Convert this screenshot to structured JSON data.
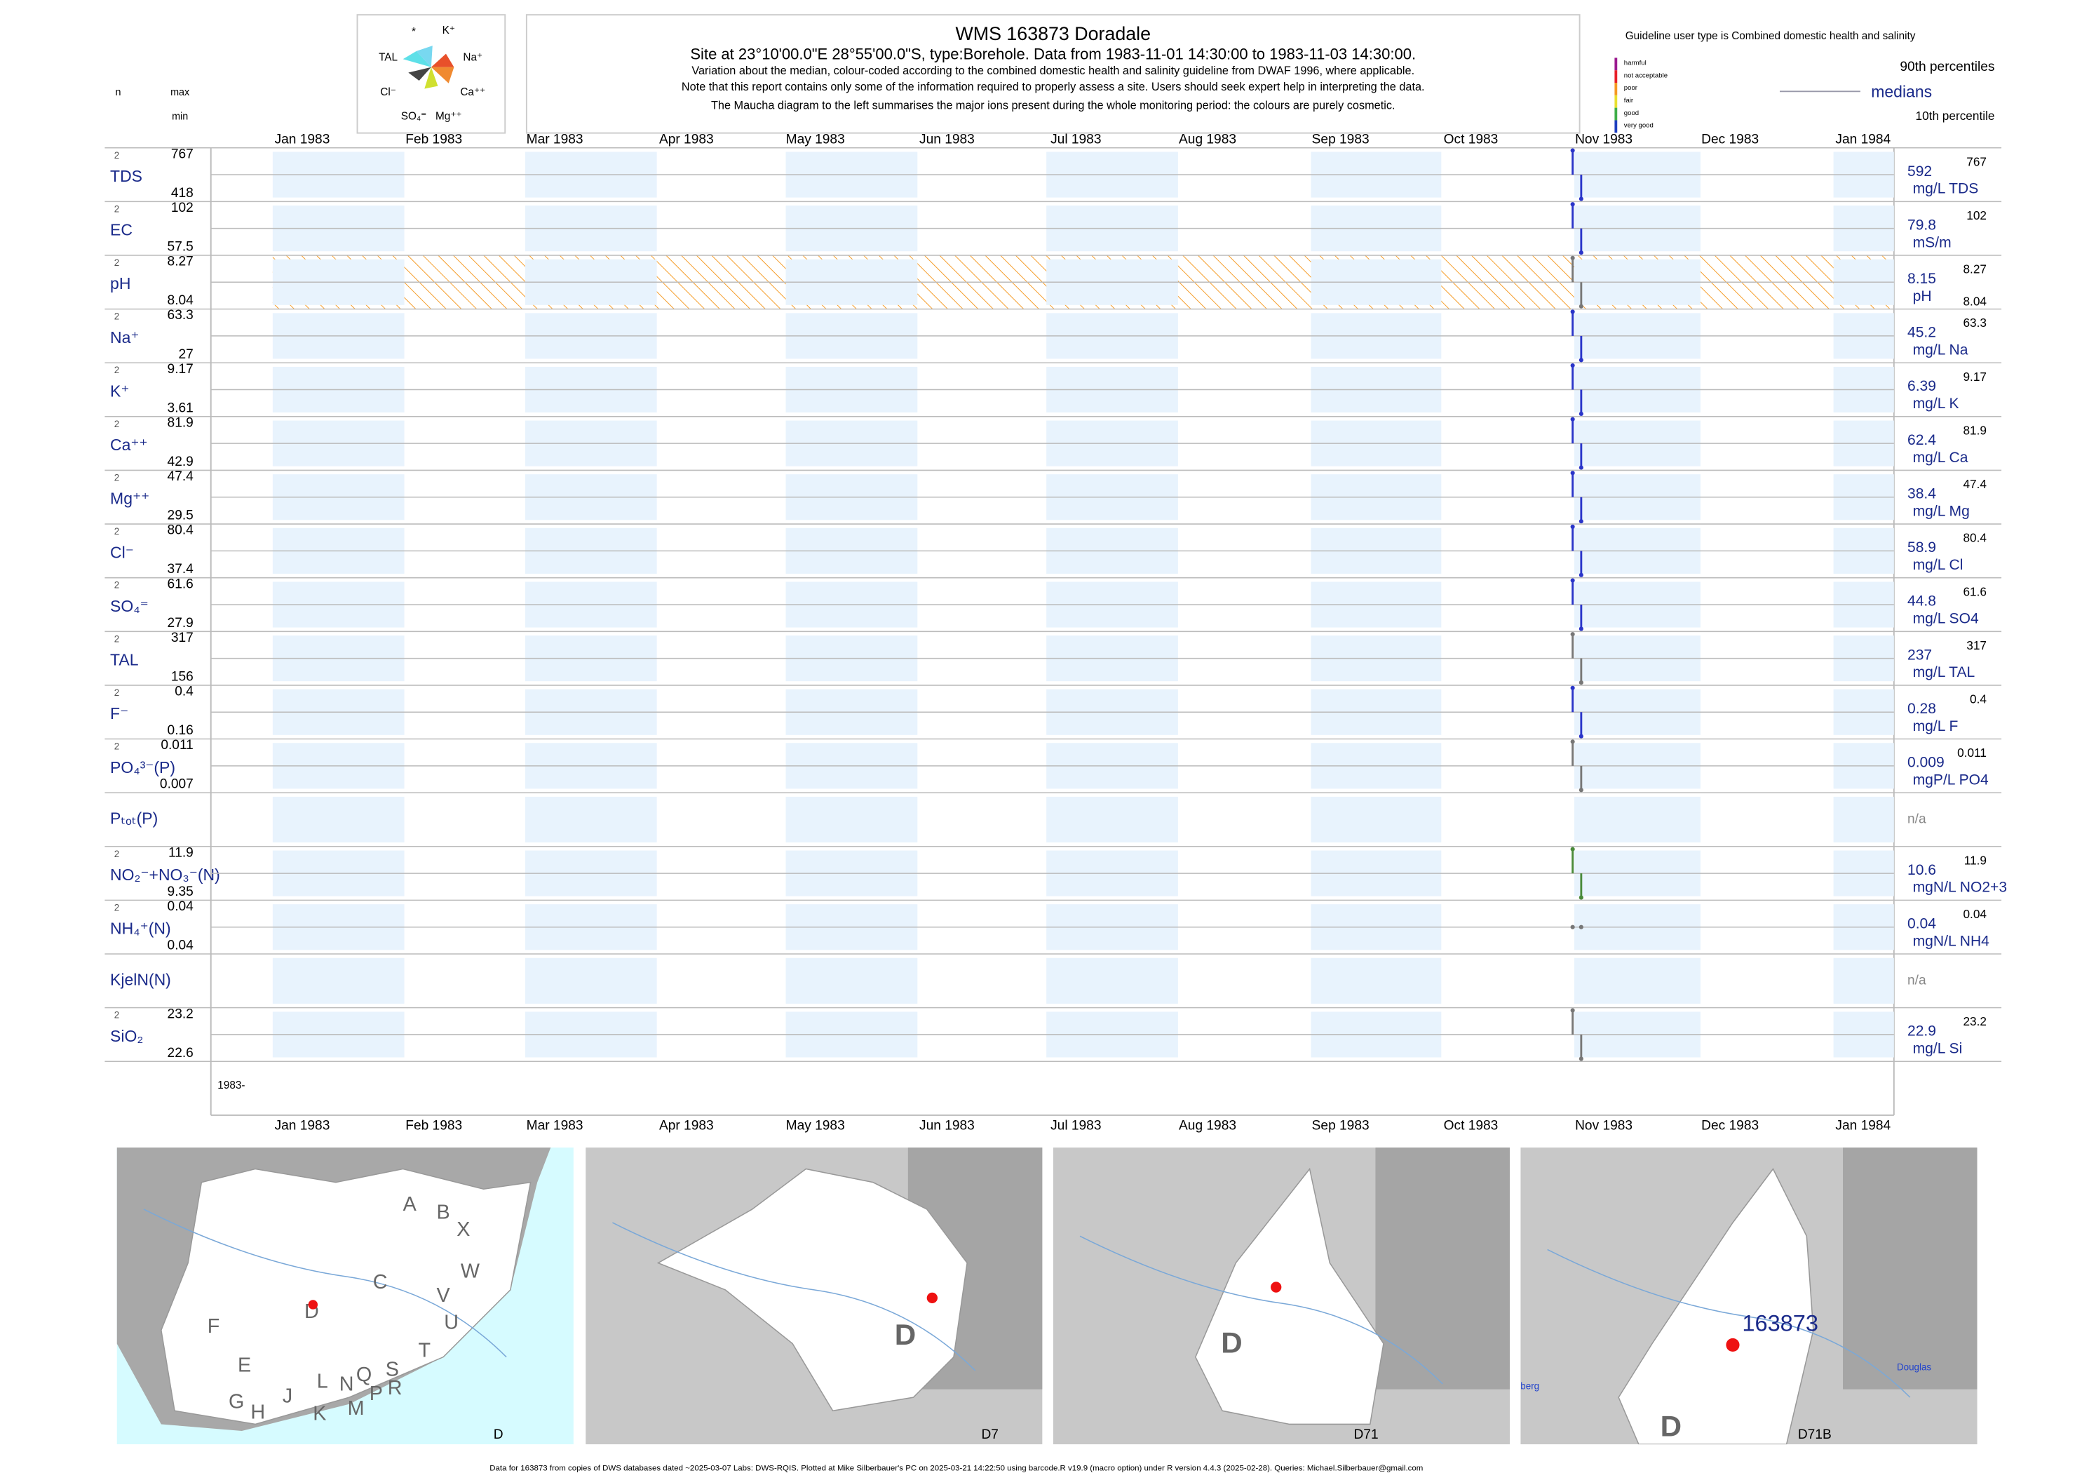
{
  "header": {
    "title": "WMS 163873  Doradale",
    "subtitle": "Site at 23°10'00.0\"E 28°55'00.0\"S, type:Borehole.  Data from 1983-11-01 14:30:00 to 1983-11-03 14:30:00.",
    "notes": [
      "Variation about the median,  colour-coded according to the combined domestic health and salinity guideline from DWAF 1996, where applicable.",
      "Note that this report contains only some of the information required to properly assess a site. Users should seek expert help in interpreting the data.",
      "The Maucha diagram to the left summarises the major ions present during the whole monitoring period: the colours are purely cosmetic."
    ],
    "maucha_labels": [
      "*",
      "K⁺",
      "TAL",
      "Na⁺",
      "Cl⁻",
      "Ca⁺⁺",
      "SO₄⁼",
      "Mg⁺⁺"
    ]
  },
  "legend": {
    "guideline": "Guideline user type is Combined domestic health and salinity",
    "classes": [
      "harmful",
      "not acceptable",
      "poor",
      "fair",
      "good",
      "very good"
    ],
    "class_colors": [
      "#9b1b8f",
      "#e8202a",
      "#f59a23",
      "#e8e030",
      "#3fae49",
      "#1f3fbf"
    ],
    "p90": "90th percentiles",
    "medians": "medians",
    "p10": "10th percentile"
  },
  "columns": {
    "n": "n",
    "max": "max",
    "min": "min"
  },
  "months": [
    "Jan 1983",
    "Feb 1983",
    "Mar 1983",
    "Apr 1983",
    "May 1983",
    "Jun 1983",
    "Jul 1983",
    "Aug 1983",
    "Sep 1983",
    "Oct 1983",
    "Nov 1983",
    "Dec 1983",
    "Jan 1984"
  ],
  "year_label": "1983-",
  "rows": [
    {
      "label": "TDS",
      "n": 2,
      "max": 767,
      "min": 418,
      "median": 592,
      "unit": "mg/L TDS",
      "color": "#2a35c9"
    },
    {
      "label": "EC",
      "n": 2,
      "max": 102,
      "min": 57.5,
      "median": 79.8,
      "unit": "mS/m",
      "color": "#2a35c9"
    },
    {
      "label": "pH",
      "n": 2,
      "max": 8.27,
      "min": 8.04,
      "median": 8.15,
      "unit": "pH",
      "color": "#777777"
    },
    {
      "label": "Na⁺",
      "n": 2,
      "max": 63.3,
      "min": 27,
      "median": 45.2,
      "unit": "mg/L Na",
      "color": "#2a35c9"
    },
    {
      "label": "K⁺",
      "n": 2,
      "max": 9.17,
      "min": 3.61,
      "median": 6.39,
      "unit": "mg/L K",
      "color": "#2a35c9"
    },
    {
      "label": "Ca⁺⁺",
      "n": 2,
      "max": 81.9,
      "min": 42.9,
      "median": 62.4,
      "unit": "mg/L Ca",
      "color": "#2a35c9"
    },
    {
      "label": "Mg⁺⁺",
      "n": 2,
      "max": 47.4,
      "min": 29.5,
      "median": 38.4,
      "unit": "mg/L Mg",
      "color": "#2a35c9"
    },
    {
      "label": "Cl⁻",
      "n": 2,
      "max": 80.4,
      "min": 37.4,
      "median": 58.9,
      "unit": "mg/L Cl",
      "color": "#2a35c9"
    },
    {
      "label": "SO₄⁼",
      "n": 2,
      "max": 61.6,
      "min": 27.9,
      "median": 44.8,
      "unit": "mg/L SO4",
      "color": "#2a35c9"
    },
    {
      "label": "TAL",
      "n": 2,
      "max": 317,
      "min": 156,
      "median": 237,
      "unit": "mg/L TAL",
      "color": "#777777"
    },
    {
      "label": "F⁻",
      "n": 2,
      "max": 0.4,
      "min": 0.16,
      "median": 0.28,
      "unit": "mg/L F",
      "color": "#2a35c9"
    },
    {
      "label": "PO₄³⁻(P)",
      "n": 2,
      "max": 0.011,
      "min": 0.007,
      "median": 0.009,
      "unit": "mgP/L PO4",
      "color": "#777777"
    },
    {
      "label": "Pₜₒₜ(P)",
      "median": "n/a"
    },
    {
      "label": "NO₂⁻+NO₃⁻(N)",
      "n": 2,
      "max": 11.9,
      "min": 9.35,
      "median": 10.6,
      "unit": "mgN/L NO2+3",
      "color": "#4a8a3a"
    },
    {
      "label": "NH₄⁺(N)",
      "n": 2,
      "max": 0.04,
      "min": 0.04,
      "median": 0.04,
      "unit": "mgN/L NH4",
      "color": "#777777"
    },
    {
      "label": "KjelN(N)",
      "median": "n/a"
    },
    {
      "label": "SiO₂",
      "n": 2,
      "max": 23.2,
      "min": 22.6,
      "median": 22.9,
      "unit": "mg/L Si",
      "color": "#777777"
    }
  ],
  "maps": [
    {
      "code": "D",
      "regions": [
        "A",
        "B",
        "X",
        "W",
        "C",
        "V",
        "U",
        "D",
        "F",
        "T",
        "E",
        "S",
        "Q",
        "R",
        "L",
        "N",
        "P",
        "J",
        "M",
        "G",
        "H",
        "K"
      ]
    },
    {
      "code": "D7",
      "regions": [
        "D"
      ]
    },
    {
      "code": "D71",
      "regions": [
        "D"
      ]
    },
    {
      "code": "D71B",
      "regions": [
        "D"
      ],
      "site": "163873",
      "places": [
        "Douglas",
        "berg"
      ]
    }
  ],
  "footer": "Data for 163873 from copies of DWS databases dated ~2025-03-07 Labs: DWS-RQIS. Plotted at Mike Silberbauer's PC on 2025-03-21 14:22:50 using barcode.R v19.9 (macro option) under R version 4.4.3 (2025-02-28). Queries: Michael.Silberbauer@gmail.com"
}
